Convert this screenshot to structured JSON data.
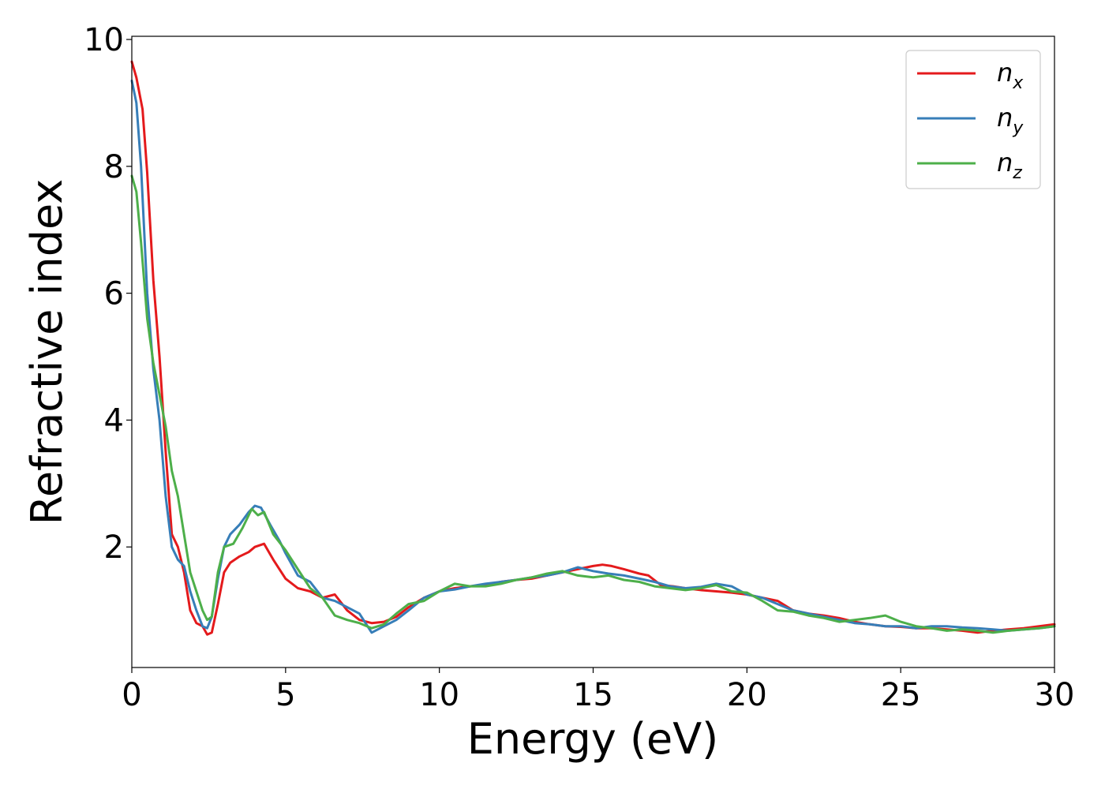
{
  "chart_data": {
    "type": "line",
    "title": "",
    "xlabel": "Energy (eV)",
    "ylabel": "Refractive index",
    "xlim": [
      0,
      30
    ],
    "ylim": [
      0.1,
      10.05
    ],
    "xticks": [
      0,
      5,
      10,
      15,
      20,
      25,
      30
    ],
    "yticks": [
      2,
      4,
      6,
      8,
      10
    ],
    "xtick_labels": [
      "0",
      "5",
      "10",
      "15",
      "20",
      "25",
      "30"
    ],
    "ytick_labels": [
      "2",
      "4",
      "6",
      "8",
      "10"
    ],
    "grid": false,
    "legend_position": "top-right",
    "series": [
      {
        "name": "n",
        "subscript": "x",
        "color": "#e41a1c",
        "x": [
          0,
          0.15,
          0.35,
          0.5,
          0.7,
          0.9,
          1.1,
          1.3,
          1.5,
          1.7,
          1.9,
          2.1,
          2.3,
          2.45,
          2.6,
          2.8,
          3.0,
          3.2,
          3.5,
          3.8,
          4.0,
          4.3,
          4.6,
          5.0,
          5.4,
          5.8,
          6.2,
          6.6,
          7.0,
          7.4,
          7.8,
          8.2,
          8.6,
          9.0,
          9.5,
          10.0,
          10.5,
          11.0,
          11.5,
          12.0,
          12.5,
          13.0,
          13.5,
          14.0,
          14.5,
          15.0,
          15.3,
          15.6,
          16.0,
          16.5,
          16.8,
          17.2,
          17.6,
          18.0,
          18.5,
          19.0,
          19.5,
          20.0,
          20.5,
          21.0,
          21.5,
          22.0,
          22.5,
          23.0,
          23.5,
          24.0,
          24.5,
          25.0,
          25.5,
          26.0,
          26.5,
          27.0,
          27.5,
          28.0,
          28.5,
          29.0,
          29.5,
          30.0
        ],
        "y": [
          9.65,
          9.4,
          8.9,
          7.9,
          6.2,
          5.0,
          3.5,
          2.2,
          2.0,
          1.6,
          1.0,
          0.8,
          0.75,
          0.62,
          0.65,
          1.1,
          1.6,
          1.75,
          1.85,
          1.92,
          2.0,
          2.05,
          1.8,
          1.5,
          1.35,
          1.3,
          1.2,
          1.25,
          1.0,
          0.85,
          0.8,
          0.82,
          0.9,
          1.05,
          1.2,
          1.3,
          1.35,
          1.38,
          1.4,
          1.45,
          1.48,
          1.5,
          1.55,
          1.6,
          1.65,
          1.7,
          1.72,
          1.7,
          1.65,
          1.58,
          1.55,
          1.4,
          1.38,
          1.35,
          1.32,
          1.3,
          1.28,
          1.25,
          1.2,
          1.15,
          1.0,
          0.95,
          0.92,
          0.88,
          0.82,
          0.78,
          0.75,
          0.74,
          0.72,
          0.72,
          0.7,
          0.68,
          0.65,
          0.68,
          0.7,
          0.72,
          0.75,
          0.78
        ]
      },
      {
        "name": "n",
        "subscript": "y",
        "color": "#377eb8",
        "x": [
          0,
          0.15,
          0.3,
          0.5,
          0.7,
          0.9,
          1.1,
          1.3,
          1.5,
          1.7,
          1.9,
          2.1,
          2.3,
          2.45,
          2.6,
          2.8,
          3.0,
          3.2,
          3.5,
          3.8,
          4.0,
          4.2,
          4.5,
          4.8,
          5.0,
          5.4,
          5.8,
          6.2,
          6.6,
          7.0,
          7.4,
          7.8,
          8.2,
          8.6,
          9.0,
          9.5,
          10.0,
          10.5,
          11.0,
          11.5,
          12.0,
          12.5,
          13.0,
          13.5,
          14.0,
          14.5,
          15.0,
          15.5,
          16.0,
          16.5,
          17.0,
          17.5,
          18.0,
          18.5,
          19.0,
          19.5,
          20.0,
          20.5,
          21.0,
          21.5,
          22.0,
          22.5,
          23.0,
          23.5,
          24.0,
          24.5,
          25.0,
          25.5,
          26.0,
          26.5,
          27.0,
          27.5,
          28.0,
          28.5,
          29.0,
          29.5,
          30.0
        ],
        "y": [
          9.35,
          9.0,
          8.0,
          6.0,
          4.8,
          4.0,
          2.8,
          2.0,
          1.8,
          1.7,
          1.3,
          1.0,
          0.75,
          0.72,
          0.9,
          1.5,
          2.0,
          2.2,
          2.35,
          2.55,
          2.65,
          2.62,
          2.35,
          2.1,
          1.9,
          1.55,
          1.45,
          1.2,
          1.15,
          1.05,
          0.95,
          0.65,
          0.75,
          0.85,
          1.0,
          1.2,
          1.3,
          1.33,
          1.38,
          1.42,
          1.45,
          1.48,
          1.52,
          1.55,
          1.6,
          1.68,
          1.62,
          1.58,
          1.55,
          1.5,
          1.45,
          1.38,
          1.35,
          1.37,
          1.42,
          1.38,
          1.25,
          1.2,
          1.1,
          1.0,
          0.95,
          0.9,
          0.85,
          0.8,
          0.78,
          0.75,
          0.75,
          0.72,
          0.75,
          0.75,
          0.73,
          0.72,
          0.7,
          0.68,
          0.7,
          0.72,
          0.75
        ]
      },
      {
        "name": "n",
        "subscript": "z",
        "color": "#4daf4a",
        "x": [
          0,
          0.15,
          0.3,
          0.5,
          0.7,
          0.9,
          1.1,
          1.3,
          1.5,
          1.7,
          1.9,
          2.1,
          2.3,
          2.45,
          2.6,
          2.8,
          3.0,
          3.3,
          3.6,
          3.9,
          4.1,
          4.3,
          4.6,
          5.0,
          5.4,
          5.8,
          6.2,
          6.6,
          7.0,
          7.4,
          7.8,
          8.2,
          8.6,
          9.0,
          9.5,
          10.0,
          10.5,
          11.0,
          11.5,
          12.0,
          12.5,
          13.0,
          13.5,
          14.0,
          14.5,
          15.0,
          15.5,
          16.0,
          16.5,
          17.0,
          17.5,
          18.0,
          18.5,
          19.0,
          19.5,
          20.0,
          20.5,
          21.0,
          21.5,
          22.0,
          22.5,
          23.0,
          23.5,
          24.0,
          24.5,
          25.0,
          25.5,
          26.0,
          26.5,
          27.0,
          27.5,
          28.0,
          28.5,
          29.0,
          29.5,
          30.0
        ],
        "y": [
          7.85,
          7.6,
          6.8,
          5.6,
          4.9,
          4.4,
          3.9,
          3.2,
          2.8,
          2.2,
          1.6,
          1.3,
          1.0,
          0.85,
          0.9,
          1.6,
          2.0,
          2.05,
          2.3,
          2.6,
          2.5,
          2.55,
          2.2,
          1.95,
          1.65,
          1.35,
          1.2,
          0.92,
          0.85,
          0.8,
          0.72,
          0.78,
          0.95,
          1.1,
          1.15,
          1.3,
          1.42,
          1.38,
          1.38,
          1.42,
          1.48,
          1.52,
          1.58,
          1.62,
          1.55,
          1.52,
          1.55,
          1.48,
          1.45,
          1.38,
          1.35,
          1.32,
          1.35,
          1.4,
          1.3,
          1.28,
          1.15,
          1.0,
          0.98,
          0.92,
          0.88,
          0.82,
          0.85,
          0.88,
          0.92,
          0.82,
          0.75,
          0.72,
          0.68,
          0.7,
          0.68,
          0.65,
          0.68,
          0.7,
          0.72,
          0.75
        ]
      }
    ]
  }
}
